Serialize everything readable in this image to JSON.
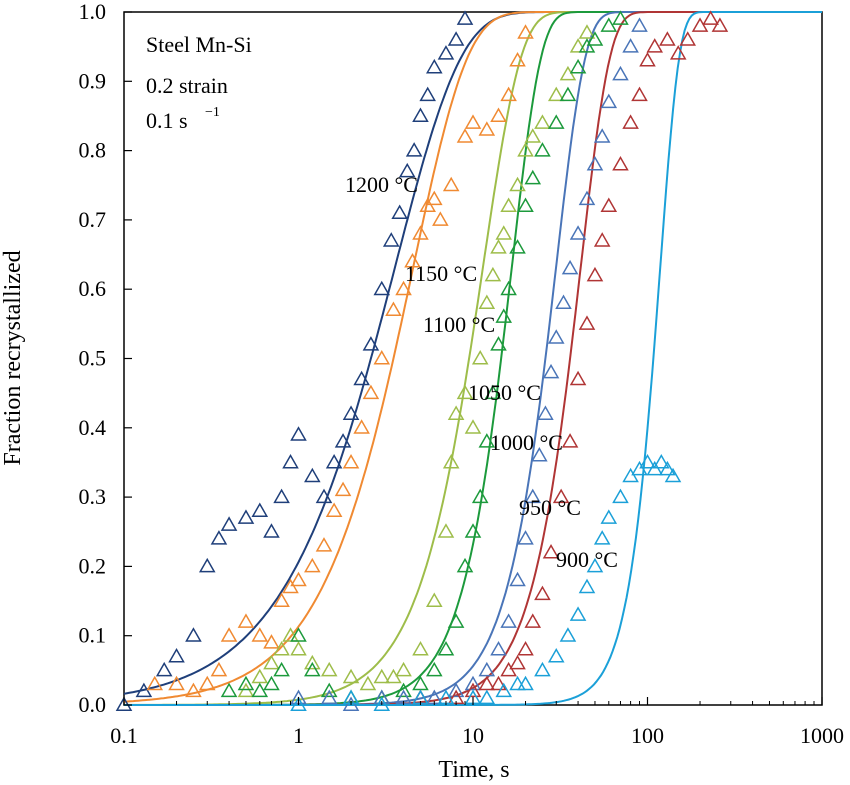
{
  "chart_data": {
    "type": "scatter",
    "xlabel": "Time, s",
    "ylabel": "Fraction recrystallized",
    "x_scale": "log",
    "xlim": [
      0.1,
      1000
    ],
    "ylim": [
      0,
      1
    ],
    "x_ticks": [
      0.1,
      1,
      10,
      100,
      1000
    ],
    "x_tick_labels": [
      "0.1",
      "1",
      "10",
      "100",
      "1000"
    ],
    "y_ticks": [
      0,
      0.1,
      0.2,
      0.3,
      0.4,
      0.5,
      0.6,
      0.7,
      0.8,
      0.9,
      1.0
    ],
    "y_tick_labels": [
      "0.0",
      "0.1",
      "0.2",
      "0.3",
      "0.4",
      "0.5",
      "0.6",
      "0.7",
      "0.8",
      "0.9",
      "1.0"
    ],
    "annotations": [
      "Steel Mn-Si",
      "0.2 strain",
      "0.1 s",
      "−1"
    ],
    "grid": false,
    "marker": "open-triangle",
    "series": [
      {
        "name": "1200 °C",
        "color": "#1f3f7a",
        "t50": 2.6,
        "n": 1.15,
        "points": [
          [
            0.1,
            0.0
          ],
          [
            0.13,
            0.02
          ],
          [
            0.17,
            0.05
          ],
          [
            0.2,
            0.07
          ],
          [
            0.25,
            0.1
          ],
          [
            0.3,
            0.2
          ],
          [
            0.35,
            0.24
          ],
          [
            0.4,
            0.26
          ],
          [
            0.5,
            0.27
          ],
          [
            0.6,
            0.28
          ],
          [
            0.7,
            0.25
          ],
          [
            0.8,
            0.3
          ],
          [
            0.9,
            0.35
          ],
          [
            1.0,
            0.39
          ],
          [
            1.2,
            0.33
          ],
          [
            1.4,
            0.3
          ],
          [
            1.6,
            0.35
          ],
          [
            1.8,
            0.38
          ],
          [
            2.0,
            0.42
          ],
          [
            2.3,
            0.47
          ],
          [
            2.6,
            0.52
          ],
          [
            3.0,
            0.6
          ],
          [
            3.4,
            0.67
          ],
          [
            3.8,
            0.71
          ],
          [
            4.2,
            0.77
          ],
          [
            4.6,
            0.8
          ],
          [
            5.0,
            0.85
          ],
          [
            5.5,
            0.88
          ],
          [
            6.0,
            0.92
          ],
          [
            7.0,
            0.94
          ],
          [
            8.0,
            0.96
          ],
          [
            9.0,
            0.99
          ]
        ]
      },
      {
        "name": "1150 °C",
        "color": "#f08a32",
        "t50": 3.5,
        "n": 1.4,
        "points": [
          [
            0.15,
            0.03
          ],
          [
            0.2,
            0.03
          ],
          [
            0.25,
            0.02
          ],
          [
            0.3,
            0.03
          ],
          [
            0.35,
            0.05
          ],
          [
            0.4,
            0.1
          ],
          [
            0.5,
            0.12
          ],
          [
            0.6,
            0.1
          ],
          [
            0.7,
            0.09
          ],
          [
            0.8,
            0.15
          ],
          [
            0.9,
            0.17
          ],
          [
            1.0,
            0.18
          ],
          [
            1.2,
            0.2
          ],
          [
            1.4,
            0.23
          ],
          [
            1.6,
            0.28
          ],
          [
            1.8,
            0.31
          ],
          [
            2.0,
            0.35
          ],
          [
            2.3,
            0.4
          ],
          [
            2.6,
            0.45
          ],
          [
            3.0,
            0.5
          ],
          [
            3.5,
            0.57
          ],
          [
            4.0,
            0.6
          ],
          [
            4.5,
            0.64
          ],
          [
            5.0,
            0.68
          ],
          [
            5.5,
            0.72
          ],
          [
            6.0,
            0.73
          ],
          [
            6.5,
            0.7
          ],
          [
            7.5,
            0.75
          ],
          [
            9.0,
            0.82
          ],
          [
            10.0,
            0.84
          ],
          [
            12.0,
            0.83
          ],
          [
            14.0,
            0.85
          ],
          [
            16.0,
            0.88
          ],
          [
            18.0,
            0.93
          ],
          [
            20.0,
            0.97
          ]
        ]
      },
      {
        "name": "1100 °C",
        "color": "#9ebd4a",
        "t50": 9.5,
        "n": 2.0,
        "points": [
          [
            0.5,
            0.02
          ],
          [
            0.6,
            0.04
          ],
          [
            0.7,
            0.06
          ],
          [
            0.8,
            0.08
          ],
          [
            0.9,
            0.1
          ],
          [
            1.0,
            0.08
          ],
          [
            1.2,
            0.06
          ],
          [
            1.5,
            0.05
          ],
          [
            2.0,
            0.04
          ],
          [
            2.5,
            0.03
          ],
          [
            3.0,
            0.04
          ],
          [
            3.5,
            0.04
          ],
          [
            4.0,
            0.05
          ],
          [
            5.0,
            0.08
          ],
          [
            6.0,
            0.15
          ],
          [
            7.0,
            0.25
          ],
          [
            7.5,
            0.35
          ],
          [
            8.0,
            0.42
          ],
          [
            9.0,
            0.45
          ],
          [
            10.0,
            0.4
          ],
          [
            11.0,
            0.5
          ],
          [
            12.0,
            0.58
          ],
          [
            13.0,
            0.62
          ],
          [
            14.0,
            0.66
          ],
          [
            15.0,
            0.68
          ],
          [
            16.0,
            0.72
          ],
          [
            18.0,
            0.75
          ],
          [
            20.0,
            0.8
          ],
          [
            22.0,
            0.82
          ],
          [
            25.0,
            0.84
          ],
          [
            30.0,
            0.88
          ],
          [
            35.0,
            0.91
          ],
          [
            40.0,
            0.95
          ],
          [
            45.0,
            0.97
          ]
        ]
      },
      {
        "name": "1050 °C",
        "color": "#1c9a3c",
        "t50": 14.5,
        "n": 2.6,
        "points": [
          [
            0.4,
            0.02
          ],
          [
            0.5,
            0.03
          ],
          [
            0.6,
            0.02
          ],
          [
            0.7,
            0.03
          ],
          [
            0.8,
            0.05
          ],
          [
            1.0,
            0.1
          ],
          [
            1.2,
            0.05
          ],
          [
            1.5,
            0.02
          ],
          [
            2.0,
            0.01
          ],
          [
            3.0,
            0.01
          ],
          [
            4.0,
            0.02
          ],
          [
            5.0,
            0.03
          ],
          [
            6.0,
            0.05
          ],
          [
            7.0,
            0.08
          ],
          [
            8.0,
            0.12
          ],
          [
            9.0,
            0.2
          ],
          [
            10.0,
            0.25
          ],
          [
            11.0,
            0.3
          ],
          [
            12.0,
            0.38
          ],
          [
            13.0,
            0.45
          ],
          [
            14.0,
            0.52
          ],
          [
            15.0,
            0.56
          ],
          [
            16.0,
            0.6
          ],
          [
            18.0,
            0.66
          ],
          [
            20.0,
            0.72
          ],
          [
            22.0,
            0.76
          ],
          [
            25.0,
            0.8
          ],
          [
            30.0,
            0.84
          ],
          [
            35.0,
            0.88
          ],
          [
            40.0,
            0.92
          ],
          [
            45.0,
            0.95
          ],
          [
            50.0,
            0.96
          ],
          [
            60.0,
            0.98
          ],
          [
            70.0,
            0.99
          ]
        ]
      },
      {
        "name": "1000 °C",
        "color": "#4a75b8",
        "t50": 26.0,
        "n": 2.6,
        "points": [
          [
            1.0,
            0.01
          ],
          [
            1.5,
            0.01
          ],
          [
            2.0,
            0.0
          ],
          [
            3.0,
            0.01
          ],
          [
            4.0,
            0.01
          ],
          [
            5.0,
            0.01
          ],
          [
            6.0,
            0.01
          ],
          [
            8.0,
            0.02
          ],
          [
            10.0,
            0.03
          ],
          [
            12.0,
            0.05
          ],
          [
            14.0,
            0.08
          ],
          [
            16.0,
            0.12
          ],
          [
            18.0,
            0.18
          ],
          [
            20.0,
            0.24
          ],
          [
            22.0,
            0.3
          ],
          [
            24.0,
            0.36
          ],
          [
            26.0,
            0.42
          ],
          [
            28.0,
            0.48
          ],
          [
            30.0,
            0.53
          ],
          [
            33.0,
            0.58
          ],
          [
            36.0,
            0.63
          ],
          [
            40.0,
            0.68
          ],
          [
            45.0,
            0.73
          ],
          [
            50.0,
            0.78
          ],
          [
            55.0,
            0.82
          ],
          [
            60.0,
            0.87
          ],
          [
            70.0,
            0.91
          ],
          [
            80.0,
            0.95
          ],
          [
            90.0,
            0.98
          ]
        ]
      },
      {
        "name": "950 °C",
        "color": "#b03535",
        "t50": 36.0,
        "n": 2.6,
        "points": [
          [
            5.0,
            0.01
          ],
          [
            8.0,
            0.01
          ],
          [
            10.0,
            0.02
          ],
          [
            12.0,
            0.03
          ],
          [
            14.0,
            0.03
          ],
          [
            16.0,
            0.05
          ],
          [
            18.0,
            0.06
          ],
          [
            20.0,
            0.08
          ],
          [
            22.0,
            0.12
          ],
          [
            25.0,
            0.16
          ],
          [
            28.0,
            0.22
          ],
          [
            32.0,
            0.3
          ],
          [
            36.0,
            0.38
          ],
          [
            40.0,
            0.47
          ],
          [
            45.0,
            0.55
          ],
          [
            50.0,
            0.62
          ],
          [
            55.0,
            0.67
          ],
          [
            60.0,
            0.72
          ],
          [
            70.0,
            0.78
          ],
          [
            80.0,
            0.84
          ],
          [
            90.0,
            0.88
          ],
          [
            100.0,
            0.93
          ],
          [
            110.0,
            0.95
          ],
          [
            130.0,
            0.96
          ],
          [
            150.0,
            0.94
          ],
          [
            170.0,
            0.96
          ],
          [
            200.0,
            0.98
          ],
          [
            230.0,
            0.99
          ],
          [
            260.0,
            0.98
          ]
        ]
      },
      {
        "name": "900 °C",
        "color": "#1ba0d8",
        "t50": 108.0,
        "n": 4.0,
        "points": [
          [
            1.0,
            0.0
          ],
          [
            2.0,
            0.01
          ],
          [
            3.0,
            0.0
          ],
          [
            5.0,
            0.01
          ],
          [
            7.0,
            0.01
          ],
          [
            10.0,
            0.01
          ],
          [
            12.0,
            0.01
          ],
          [
            15.0,
            0.02
          ],
          [
            18.0,
            0.03
          ],
          [
            20.0,
            0.03
          ],
          [
            25.0,
            0.05
          ],
          [
            30.0,
            0.07
          ],
          [
            35.0,
            0.1
          ],
          [
            40.0,
            0.13
          ],
          [
            45.0,
            0.17
          ],
          [
            50.0,
            0.2
          ],
          [
            55.0,
            0.24
          ],
          [
            60.0,
            0.27
          ],
          [
            70.0,
            0.3
          ],
          [
            80.0,
            0.33
          ],
          [
            90.0,
            0.34
          ],
          [
            100.0,
            0.35
          ],
          [
            110.0,
            0.34
          ],
          [
            120.0,
            0.35
          ],
          [
            130.0,
            0.34
          ],
          [
            140.0,
            0.33
          ]
        ]
      }
    ]
  }
}
